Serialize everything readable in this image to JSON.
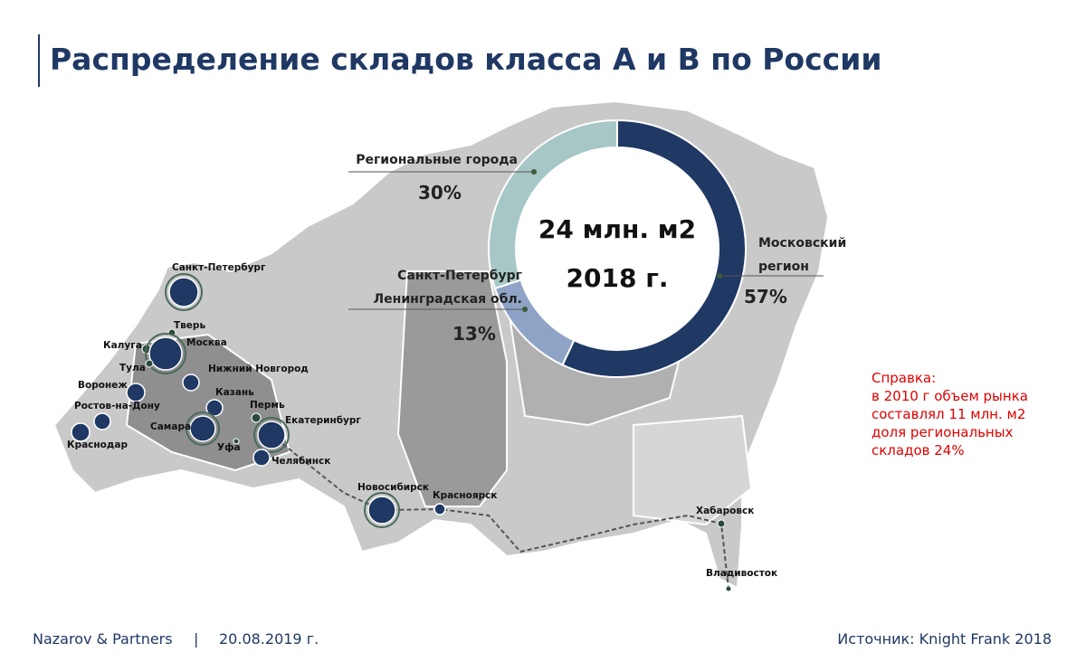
{
  "header": {
    "title": "Распределение складов класса А и В по России"
  },
  "chart_data": {
    "type": "donut",
    "categories": [
      "Московский\nрегион",
      "Санкт-Петербург\nЛенинградская обл.",
      "Региональные города"
    ],
    "values": [
      57,
      13,
      30
    ],
    "value_labels": [
      "57%",
      "13%",
      "30%"
    ],
    "colors": [
      "#1f3864",
      "#8ea3c6",
      "#a7c7c6"
    ],
    "annotations": [
      "24 млн. м2",
      "2018 г."
    ]
  },
  "map": {
    "cities": [
      "Санкт-Петербург",
      "Тверь",
      "Калуга",
      "Москва",
      "Тула",
      "Нижний Новгород",
      "Воронеж",
      "Казань",
      "Ростов-на-Дону",
      "Пермь",
      "Самара",
      "Екатеринбург",
      "Краснодар",
      "Уфа",
      "Челябинск",
      "Новосибирск",
      "Красноярск",
      "Хабаровск",
      "Владивосток"
    ]
  },
  "note": {
    "lines": [
      "Справка:",
      "в 2010 г объем рынка",
      "составлял 11 млн. м2",
      "доля региональных",
      "складов 24%"
    ]
  },
  "footer": {
    "company": "Nazarov & Partners",
    "separator": "|",
    "date": "20.08.2019 г.",
    "source": "Источник: Knight Frank 2018"
  }
}
